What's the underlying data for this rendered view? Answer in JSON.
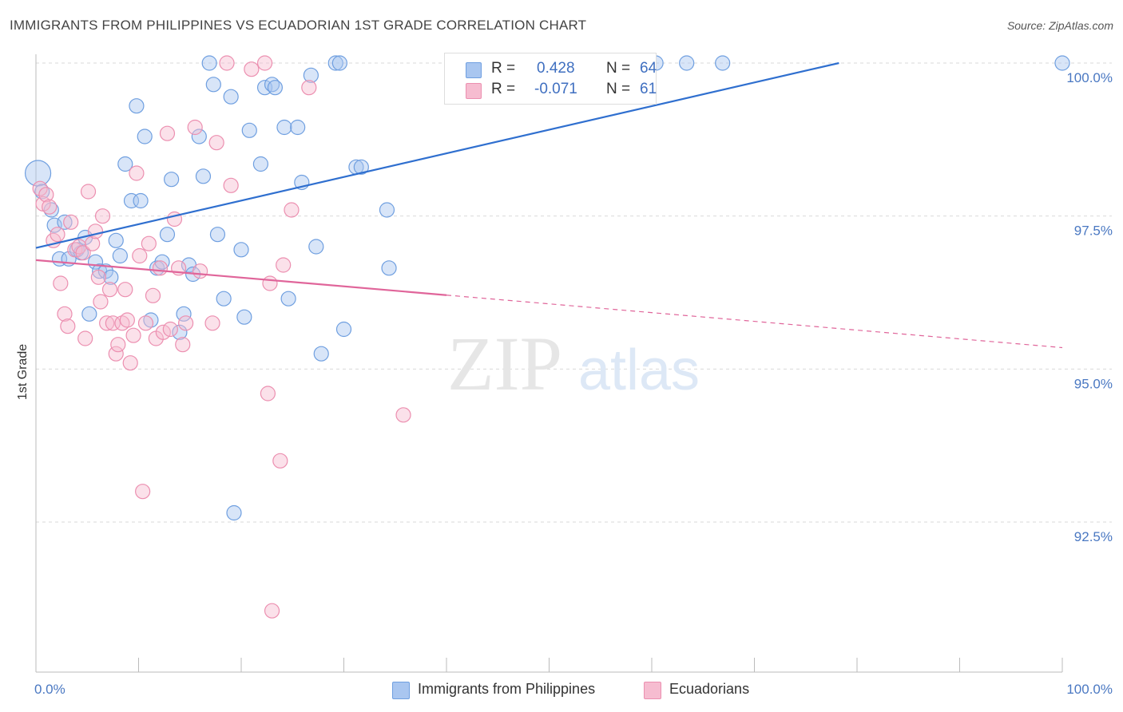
{
  "header": {
    "title": "IMMIGRANTS FROM PHILIPPINES VS ECUADORIAN 1ST GRADE CORRELATION CHART",
    "source": "Source: ZipAtlas.com"
  },
  "watermark": {
    "zip": "ZIP",
    "atlas": "atlas"
  },
  "colors": {
    "blue": "#6f9fe0",
    "blue_fill": "#a9c6f0",
    "blue_line": "#2f6fcf",
    "pink": "#ec8fb0",
    "pink_fill": "#f6bcd0",
    "pink_line": "#e0659a",
    "tick_text": "#4a78c2"
  },
  "stats": {
    "rows": [
      {
        "r_label": "R =",
        "r_value": "0.428",
        "n_label": "N =",
        "n_value": "64",
        "swatch": "blue"
      },
      {
        "r_label": "R =",
        "r_value": "-0.071",
        "n_label": "N =",
        "n_value": "61",
        "swatch": "pink"
      }
    ]
  },
  "legend": {
    "items": [
      {
        "label": "Immigrants from Philippines",
        "swatch": "blue"
      },
      {
        "label": "Ecuadorians",
        "swatch": "pink"
      }
    ]
  },
  "chart_data": {
    "type": "scatter",
    "title": "IMMIGRANTS FROM PHILIPPINES VS ECUADORIAN 1ST GRADE CORRELATION CHART",
    "xlabel": "",
    "ylabel": "1st Grade",
    "xlim": [
      0,
      100
    ],
    "ylim": [
      90.0,
      100.25
    ],
    "x_tick_labels": [
      "0.0%",
      "100.0%"
    ],
    "y_ticks": [
      92.5,
      95.0,
      97.5,
      100.0
    ],
    "y_tick_labels": [
      "92.5%",
      "95.0%",
      "97.5%",
      "100.0%"
    ],
    "grid": "horizontal dashed",
    "legend_position": "bottom-center",
    "series": [
      {
        "name": "Immigrants from Philippines",
        "color": "blue",
        "r": 0.428,
        "n": 64,
        "trend": {
          "x": [
            0,
            100
          ],
          "y": [
            96.98,
            100.84
          ],
          "dashed_from": null
        },
        "points": [
          [
            0.2,
            98.2,
            3
          ],
          [
            0.6,
            97.9,
            1
          ],
          [
            1.5,
            97.6,
            1
          ],
          [
            1.8,
            97.35,
            1
          ],
          [
            2.3,
            96.8,
            1
          ],
          [
            2.8,
            97.4,
            1
          ],
          [
            3.2,
            96.8,
            1
          ],
          [
            4.0,
            96.95,
            1
          ],
          [
            4.4,
            96.9,
            1
          ],
          [
            4.8,
            97.15,
            1
          ],
          [
            5.2,
            95.9,
            1
          ],
          [
            5.8,
            96.75,
            1
          ],
          [
            6.2,
            96.6,
            1
          ],
          [
            6.8,
            96.6,
            1
          ],
          [
            7.3,
            96.5,
            1
          ],
          [
            7.8,
            97.1,
            1
          ],
          [
            8.2,
            96.85,
            1
          ],
          [
            8.7,
            98.35,
            1
          ],
          [
            9.3,
            97.75,
            1
          ],
          [
            9.8,
            99.3,
            1
          ],
          [
            10.2,
            97.75,
            1
          ],
          [
            10.6,
            98.8,
            1
          ],
          [
            11.2,
            95.8,
            1
          ],
          [
            11.8,
            96.65,
            1
          ],
          [
            12.3,
            96.75,
            1
          ],
          [
            12.8,
            97.2,
            1
          ],
          [
            13.2,
            98.1,
            1
          ],
          [
            14.0,
            95.6,
            1
          ],
          [
            14.4,
            95.9,
            1
          ],
          [
            14.9,
            96.7,
            1
          ],
          [
            15.3,
            96.55,
            1
          ],
          [
            15.9,
            98.8,
            1
          ],
          [
            16.3,
            98.15,
            1
          ],
          [
            16.9,
            100.0,
            1
          ],
          [
            17.3,
            99.65,
            1
          ],
          [
            17.7,
            97.2,
            1
          ],
          [
            18.3,
            96.15,
            1
          ],
          [
            19.0,
            99.45,
            1
          ],
          [
            19.3,
            92.65,
            1
          ],
          [
            20.0,
            96.95,
            1
          ],
          [
            20.3,
            95.85,
            1
          ],
          [
            20.8,
            98.9,
            1
          ],
          [
            21.9,
            98.35,
            1
          ],
          [
            22.3,
            99.6,
            1
          ],
          [
            23.0,
            99.65,
            1
          ],
          [
            23.3,
            99.6,
            1
          ],
          [
            24.2,
            98.95,
            1
          ],
          [
            24.6,
            96.15,
            1
          ],
          [
            25.5,
            98.95,
            1
          ],
          [
            25.9,
            98.05,
            1
          ],
          [
            26.8,
            99.8,
            1
          ],
          [
            27.3,
            97.0,
            1
          ],
          [
            27.8,
            95.25,
            1
          ],
          [
            29.2,
            100.0,
            1
          ],
          [
            29.6,
            100.0,
            1
          ],
          [
            30.0,
            95.65,
            1
          ],
          [
            31.2,
            98.3,
            1
          ],
          [
            31.7,
            98.3,
            1
          ],
          [
            34.2,
            97.6,
            1
          ],
          [
            34.4,
            96.65,
            1
          ],
          [
            60.4,
            100.0,
            1
          ],
          [
            63.4,
            100.0,
            1
          ],
          [
            66.9,
            100.0,
            1
          ],
          [
            100.0,
            100.0,
            1
          ]
        ]
      },
      {
        "name": "Ecuadorians",
        "color": "pink",
        "r": -0.071,
        "n": 61,
        "trend": {
          "x": [
            0,
            100
          ],
          "y": [
            96.78,
            95.35
          ],
          "dashed_from": 40
        },
        "points": [
          [
            0.4,
            97.95,
            1
          ],
          [
            0.7,
            97.7,
            1
          ],
          [
            1.0,
            97.85,
            1
          ],
          [
            1.3,
            97.65,
            1
          ],
          [
            1.7,
            97.1,
            1
          ],
          [
            2.1,
            97.2,
            1
          ],
          [
            2.4,
            96.4,
            1
          ],
          [
            2.8,
            95.9,
            1
          ],
          [
            3.1,
            95.7,
            1
          ],
          [
            3.4,
            97.4,
            1
          ],
          [
            3.8,
            96.95,
            1
          ],
          [
            4.2,
            97.0,
            1
          ],
          [
            4.6,
            96.9,
            1
          ],
          [
            4.8,
            95.5,
            1
          ],
          [
            5.1,
            97.9,
            1
          ],
          [
            5.5,
            97.05,
            1
          ],
          [
            5.8,
            97.25,
            1
          ],
          [
            6.1,
            96.5,
            1
          ],
          [
            6.3,
            96.1,
            1
          ],
          [
            6.5,
            97.5,
            1
          ],
          [
            6.9,
            95.75,
            1
          ],
          [
            7.2,
            96.3,
            1
          ],
          [
            7.5,
            95.75,
            1
          ],
          [
            7.8,
            95.25,
            1
          ],
          [
            8.0,
            95.4,
            1
          ],
          [
            8.4,
            95.75,
            1
          ],
          [
            8.7,
            96.3,
            1
          ],
          [
            8.9,
            95.8,
            1
          ],
          [
            9.2,
            95.1,
            1
          ],
          [
            9.5,
            95.55,
            1
          ],
          [
            9.8,
            98.2,
            1
          ],
          [
            10.1,
            96.85,
            1
          ],
          [
            10.4,
            93.0,
            1
          ],
          [
            10.7,
            95.75,
            1
          ],
          [
            11.0,
            97.05,
            1
          ],
          [
            11.4,
            96.2,
            1
          ],
          [
            11.7,
            95.5,
            1
          ],
          [
            12.1,
            96.65,
            1
          ],
          [
            12.4,
            95.6,
            1
          ],
          [
            12.8,
            98.85,
            1
          ],
          [
            13.1,
            95.65,
            1
          ],
          [
            13.5,
            97.45,
            1
          ],
          [
            13.9,
            96.65,
            1
          ],
          [
            14.3,
            95.4,
            1
          ],
          [
            14.6,
            95.75,
            1
          ],
          [
            15.5,
            98.95,
            1
          ],
          [
            16.0,
            96.6,
            1
          ],
          [
            17.2,
            95.75,
            1
          ],
          [
            17.6,
            98.7,
            1
          ],
          [
            18.6,
            100.0,
            1
          ],
          [
            19.0,
            98.0,
            1
          ],
          [
            21.0,
            99.9,
            1
          ],
          [
            22.3,
            100.0,
            1
          ],
          [
            22.6,
            94.6,
            1
          ],
          [
            22.8,
            96.4,
            1
          ],
          [
            23.0,
            91.05,
            1
          ],
          [
            23.8,
            93.5,
            1
          ],
          [
            24.1,
            96.7,
            1
          ],
          [
            24.9,
            97.6,
            1
          ],
          [
            26.6,
            99.6,
            1
          ],
          [
            35.8,
            94.25,
            1
          ]
        ]
      }
    ]
  }
}
